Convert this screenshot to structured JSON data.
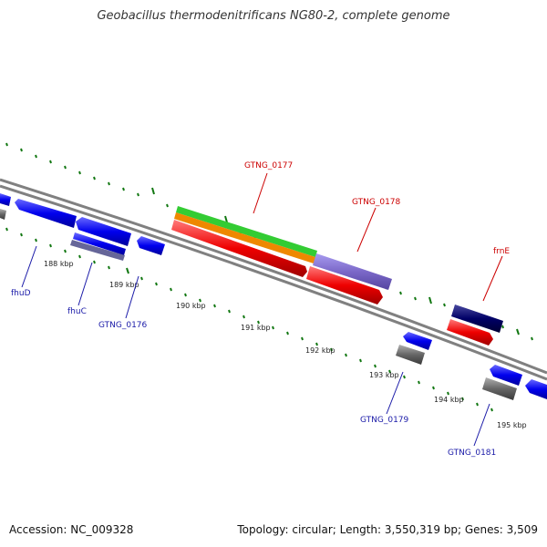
{
  "title": "Geobacillus thermodenitrificans NG80-2, complete genome",
  "footer": {
    "accession": "Accession: NC_009328",
    "summary": "Topology: circular; Length: 3,550,319 bp; Genes: 3,509"
  },
  "ticks": [
    "188 kbp",
    "189 kbp",
    "190 kbp",
    "191 kbp",
    "192 kbp",
    "193 kbp",
    "194 kbp",
    "195 kbp"
  ],
  "labels": {
    "gtng_0177": "GTNG_0177",
    "gtng_0178": "GTNG_0178",
    "frne": "frnE",
    "fhud": "fhuD",
    "fhuc": "fhuC",
    "gtng_0176": "GTNG_0176",
    "gtng_0179": "GTNG_0179",
    "gtng_0181": "GTNG_0181"
  },
  "colors": {
    "forward_strand_red": "#ee0000",
    "reverse_strand_blue": "#0000ee",
    "navy": "#000066",
    "slate": "#666699",
    "gray": "#666666",
    "purple": "#7b68c8",
    "green": "#33cc33",
    "orange": "#ee8800",
    "tick_green": "#117711",
    "backbone": "#808080"
  }
}
